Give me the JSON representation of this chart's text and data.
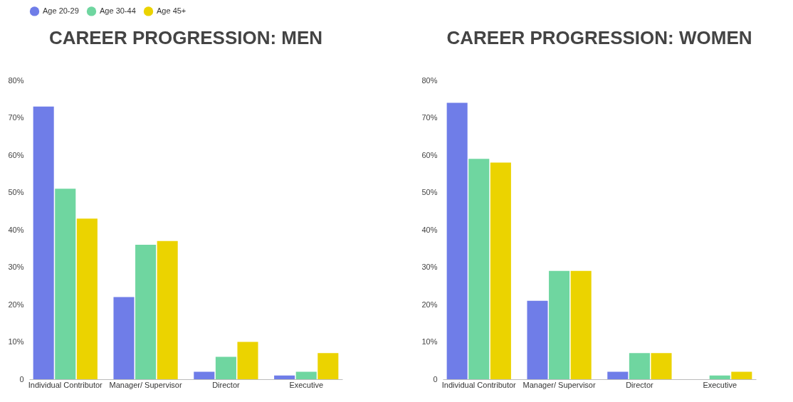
{
  "chart_data": [
    {
      "type": "bar",
      "title": "CAREER PROGRESSION: MEN",
      "categories": [
        "Individual Contributor",
        "Manager/ Supervisor",
        "Director",
        "Executive"
      ],
      "series": [
        {
          "name": "Age 20-29",
          "color": "#6f7de8",
          "values": [
            73,
            22,
            2,
            1
          ]
        },
        {
          "name": "Age 30-44",
          "color": "#6fd6a0",
          "values": [
            51,
            36,
            6,
            2
          ]
        },
        {
          "name": "Age 45+",
          "color": "#ebd300",
          "values": [
            43,
            37,
            10,
            7
          ]
        }
      ],
      "ylim": [
        0,
        80
      ],
      "yticks": [
        0,
        {
          "value": 10,
          "label": "10%"
        },
        {
          "value": 20,
          "label": "20%"
        },
        {
          "value": 30,
          "label": "30%"
        },
        {
          "value": 40,
          "label": "40%"
        },
        {
          "value": 50,
          "label": "50%"
        },
        {
          "value": 60,
          "label": "60%"
        },
        {
          "value": 70,
          "label": "70%"
        },
        {
          "value": 80,
          "label": "80%"
        }
      ],
      "grid": false,
      "legend": "top"
    },
    {
      "type": "bar",
      "title": "CAREER PROGRESSION: WOMEN",
      "categories": [
        "Individual Contributor",
        "Manager/ Supervisor",
        "Director",
        "Executive"
      ],
      "series": [
        {
          "name": "Age 20-29",
          "color": "#6f7de8",
          "values": [
            74,
            21,
            2,
            0
          ]
        },
        {
          "name": "Age 30-44",
          "color": "#6fd6a0",
          "values": [
            59,
            29,
            7,
            1
          ]
        },
        {
          "name": "Age 45+",
          "color": "#ebd300",
          "values": [
            58,
            29,
            7,
            2
          ]
        }
      ],
      "ylim": [
        0,
        80
      ],
      "yticks": [
        0,
        {
          "value": 10,
          "label": "10%"
        },
        {
          "value": 20,
          "label": "20%"
        },
        {
          "value": 30,
          "label": "30%"
        },
        {
          "value": 40,
          "label": "40%"
        },
        {
          "value": 50,
          "label": "50%"
        },
        {
          "value": 60,
          "label": "60%"
        },
        {
          "value": 70,
          "label": "70%"
        },
        {
          "value": 80,
          "label": "80%"
        }
      ],
      "grid": false,
      "legend": "top"
    }
  ]
}
